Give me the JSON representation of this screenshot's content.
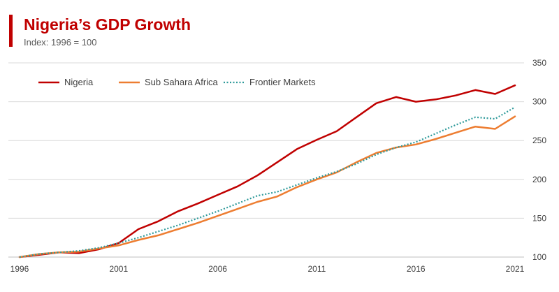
{
  "chart_data": {
    "type": "line",
    "title": "Nigeria’s GDP Growth",
    "subtitle": "Index: 1996 = 100",
    "xlabel": "",
    "ylabel": "",
    "ylim": [
      100,
      350
    ],
    "yticks": [
      100,
      150,
      200,
      250,
      300,
      350
    ],
    "xlim": [
      1996,
      2021
    ],
    "xticks": [
      1996,
      2001,
      2006,
      2011,
      2016,
      2021
    ],
    "grid": true,
    "legend_position": "top-left",
    "x": [
      1996,
      1997,
      1998,
      1999,
      2000,
      2001,
      2002,
      2003,
      2004,
      2005,
      2006,
      2007,
      2008,
      2009,
      2010,
      2011,
      2012,
      2013,
      2014,
      2015,
      2016,
      2017,
      2018,
      2019,
      2020,
      2021
    ],
    "series": [
      {
        "name": "Nigeria",
        "color": "#c00000",
        "style": "solid",
        "values": [
          100,
          103,
          106,
          105,
          110,
          118,
          136,
          146,
          159,
          169,
          180,
          191,
          205,
          222,
          239,
          251,
          262,
          280,
          298,
          306,
          300,
          303,
          308,
          315,
          310,
          321
        ]
      },
      {
        "name": "Sub Sahara Africa",
        "color": "#ed7d31",
        "style": "solid",
        "values": [
          100,
          104,
          106,
          107,
          111,
          115,
          122,
          128,
          136,
          144,
          153,
          162,
          171,
          178,
          190,
          200,
          209,
          222,
          234,
          241,
          245,
          252,
          260,
          268,
          265,
          281
        ]
      },
      {
        "name": "Frontier Markets",
        "color": "#2e9a9a",
        "style": "dotted",
        "values": [
          100,
          104,
          106,
          108,
          112,
          118,
          125,
          133,
          141,
          150,
          159,
          169,
          179,
          184,
          193,
          202,
          210,
          220,
          232,
          241,
          248,
          259,
          270,
          280,
          278,
          293
        ]
      }
    ]
  }
}
